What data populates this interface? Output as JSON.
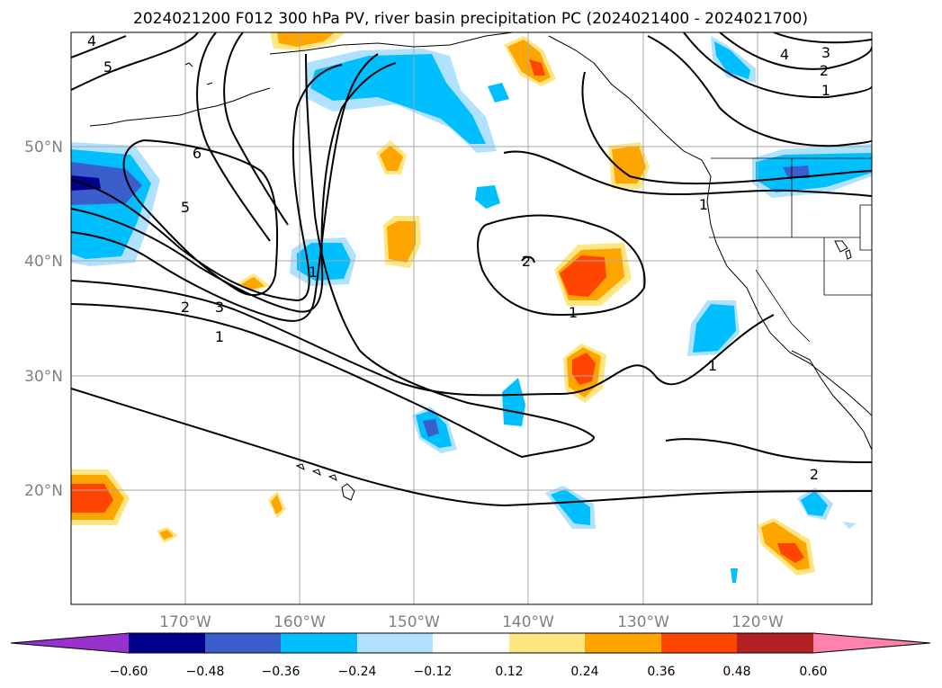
{
  "title": "2024021200 F012 300 hPa PV, river basin precipitation PC (2024021400 - 2024021700)",
  "map": {
    "lon_range": [
      -180,
      -110
    ],
    "lat_range": [
      10,
      60
    ],
    "lat_labels": [
      "50°N",
      "40°N",
      "30°N",
      "20°N"
    ],
    "lat_values": [
      50,
      40,
      30,
      20
    ],
    "lon_labels": [
      "170°W",
      "160°W",
      "150°W",
      "140°W",
      "130°W",
      "120°W"
    ],
    "lon_values": [
      -170,
      -160,
      -150,
      -140,
      -130,
      -120
    ],
    "pv_contour_labels": [
      "4",
      "5",
      "6",
      "5",
      "2",
      "3",
      "1",
      "2",
      "1",
      "1",
      "1",
      "2",
      "4",
      "3",
      "2",
      "1",
      "1"
    ]
  },
  "colorbar": {
    "ticks": [
      "−0.60",
      "−0.48",
      "−0.36",
      "−0.24",
      "−0.12",
      "0.12",
      "0.24",
      "0.36",
      "0.48",
      "0.60"
    ],
    "colors": [
      "#9932cc",
      "#00008b",
      "#3a5fcd",
      "#00bfff",
      "#b0e2ff",
      "#ffffff",
      "#ffe680",
      "#ffa500",
      "#ff4500",
      "#b22222",
      "#ff82ab"
    ]
  },
  "colors": {
    "strong_neg": "#3a5fcd",
    "neg": "#00bfff",
    "weak_neg": "#b0e2ff",
    "weak_pos": "#ffe680",
    "pos": "#ffa500",
    "strong_pos": "#ff4500"
  }
}
